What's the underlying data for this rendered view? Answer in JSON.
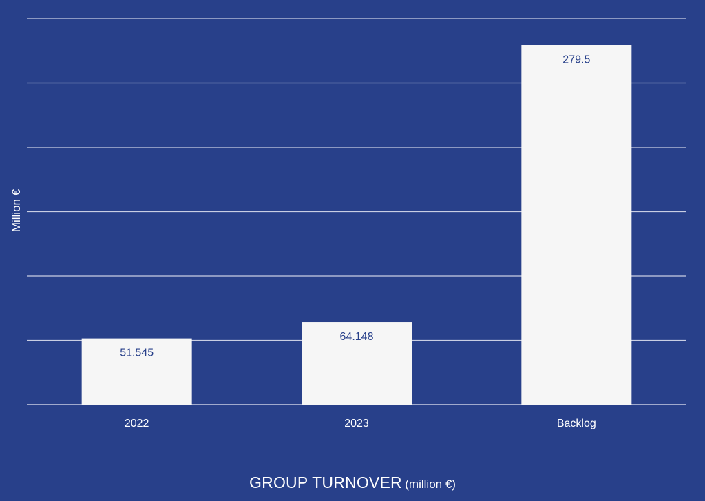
{
  "colors": {
    "background": "#28408a",
    "bar": "#f6f6f6",
    "grid": "#c9cee3",
    "value_label": "#28408a",
    "text": "#ffffff"
  },
  "chart_data": {
    "type": "bar",
    "categories": [
      "2022",
      "2023",
      "Backlog"
    ],
    "values": [
      51.545,
      64.148,
      279.5
    ],
    "value_labels": [
      "51.545",
      "64.148",
      "279.5"
    ],
    "title": "GROUP TURNOVER",
    "title_suffix": "(million €)",
    "xlabel": "",
    "ylabel": "Million €",
    "ylim": [
      0,
      300
    ],
    "grid": true,
    "y_ticks_shown": false
  }
}
